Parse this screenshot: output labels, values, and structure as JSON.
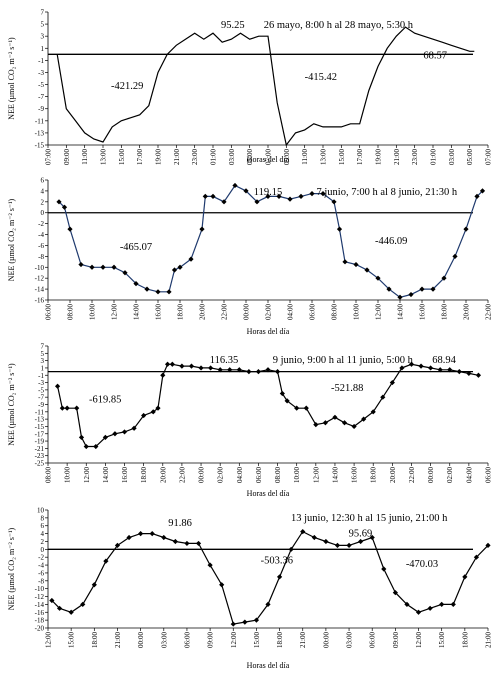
{
  "chart_data": [
    {
      "type": "line",
      "markers": false,
      "color": "#000000",
      "hline": 0,
      "y_label": "NEE (µmol CO₂ m⁻² s⁻¹)",
      "x_label": "Horas del día",
      "annotations": [
        "-421.29",
        "95.25",
        "26 mayo, 8:00 h al 28 mayo, 5:30 h",
        "68.57",
        "-415.42"
      ],
      "x": [
        1,
        2,
        3,
        4,
        5,
        6,
        7,
        8,
        9,
        10,
        11,
        12,
        13,
        14,
        15,
        16,
        17,
        18,
        19,
        20,
        21,
        22,
        23,
        24,
        25,
        26,
        27,
        28,
        29,
        30,
        31,
        32,
        33,
        34,
        35,
        36,
        37,
        38,
        39,
        40,
        41,
        42,
        43,
        44,
        45,
        46,
        46.5
      ],
      "values": [
        0,
        -9,
        -11,
        -13,
        -14,
        -14.5,
        -12,
        -11,
        -10.5,
        -10,
        -8.5,
        -3,
        0,
        1.5,
        2.5,
        3.5,
        2.5,
        3.5,
        2,
        2.5,
        3.5,
        2.5,
        3,
        3,
        -8,
        -15,
        -13,
        -12.5,
        -11.5,
        -12,
        -12,
        -12,
        -11.5,
        -11.5,
        -6,
        -2,
        1,
        3,
        4.5,
        3.5,
        3,
        2.5,
        2,
        1.5,
        1,
        0.5,
        0.5
      ],
      "xlim": [
        0,
        48
      ],
      "xticks": [
        {
          "value": 0,
          "label": "07:00"
        },
        {
          "value": 2,
          "label": "09:00"
        },
        {
          "value": 4,
          "label": "11:00"
        },
        {
          "value": 6,
          "label": "13:00"
        },
        {
          "value": 8,
          "label": "15:00"
        },
        {
          "value": 10,
          "label": "17:00"
        },
        {
          "value": 12,
          "label": "19:00"
        },
        {
          "value": 14,
          "label": "21:00"
        },
        {
          "value": 16,
          "label": "23:00"
        },
        {
          "value": 18,
          "label": "01:00"
        },
        {
          "value": 20,
          "label": "03:00"
        },
        {
          "value": 22,
          "label": "05:00"
        },
        {
          "value": 24,
          "label": "07:00"
        },
        {
          "value": 26,
          "label": "09:00"
        },
        {
          "value": 28,
          "label": "11:00"
        },
        {
          "value": 30,
          "label": "13:00"
        },
        {
          "value": 32,
          "label": "15:00"
        },
        {
          "value": 34,
          "label": "17:00"
        },
        {
          "value": 36,
          "label": "19:00"
        },
        {
          "value": 38,
          "label": "21:00"
        },
        {
          "value": 40,
          "label": "23:00"
        },
        {
          "value": 42,
          "label": "01:00"
        },
        {
          "value": 44,
          "label": "03:00"
        },
        {
          "value": 46,
          "label": "05:00"
        },
        {
          "value": 48,
          "label": "07:00"
        }
      ],
      "ylim": [
        -15,
        7
      ],
      "yticks": [
        7,
        5,
        3,
        1,
        -1,
        -3,
        -5,
        -7,
        -9,
        -11,
        -13,
        -15
      ]
    },
    {
      "type": "line",
      "markers": true,
      "color": "#1f3a6e",
      "hline": 0,
      "y_label": "NEE (µmol CO₂ m⁻² s⁻¹)",
      "x_label": "Horas del día",
      "annotations": [
        "-465.07",
        "119.15",
        "7 junio, 7:00 h al 8 junio, 21:30 h",
        "-446.09"
      ],
      "x": [
        1,
        1.5,
        2,
        3,
        4,
        5,
        6,
        7,
        8,
        9,
        10,
        11,
        11.5,
        12,
        13,
        14,
        14.3,
        15,
        16,
        17,
        18,
        19,
        20,
        21,
        22,
        23,
        24,
        25,
        26,
        26.5,
        27,
        28,
        29,
        30,
        31,
        32,
        33,
        34,
        35,
        36,
        37,
        38,
        39,
        39.5
      ],
      "values": [
        2,
        1,
        -3,
        -9.5,
        -10,
        -10,
        -10,
        -11,
        -13,
        -14,
        -14.5,
        -14.5,
        -10.5,
        -10,
        -8.5,
        -3,
        3,
        3,
        2,
        5,
        4,
        2,
        3,
        3,
        2.5,
        3,
        3.5,
        3.5,
        2,
        -3,
        -9,
        -9.5,
        -10.5,
        -12,
        -14,
        -15.5,
        -15,
        -14,
        -14,
        -12,
        -8,
        -3,
        3,
        4
      ],
      "xlim": [
        0,
        40
      ],
      "xticks": [
        {
          "value": 0,
          "label": "06:00"
        },
        {
          "value": 2,
          "label": "08:00"
        },
        {
          "value": 4,
          "label": "10:00"
        },
        {
          "value": 6,
          "label": "12:00"
        },
        {
          "value": 8,
          "label": "14:00"
        },
        {
          "value": 10,
          "label": "16:00"
        },
        {
          "value": 12,
          "label": "18:00"
        },
        {
          "value": 14,
          "label": "20:00"
        },
        {
          "value": 16,
          "label": "22:00"
        },
        {
          "value": 18,
          "label": "00:00"
        },
        {
          "value": 20,
          "label": "02:00"
        },
        {
          "value": 22,
          "label": "04:00"
        },
        {
          "value": 24,
          "label": "06:00"
        },
        {
          "value": 26,
          "label": "08:00"
        },
        {
          "value": 28,
          "label": "10:00"
        },
        {
          "value": 30,
          "label": "12:00"
        },
        {
          "value": 32,
          "label": "14:00"
        },
        {
          "value": 34,
          "label": "16:00"
        },
        {
          "value": 36,
          "label": "18:00"
        },
        {
          "value": 38,
          "label": "20:00"
        },
        {
          "value": 40,
          "label": "22:00"
        }
      ],
      "ylim": [
        -16,
        6
      ],
      "yticks": [
        6,
        4,
        2,
        0,
        -2,
        -4,
        -6,
        -8,
        -10,
        -12,
        -14,
        -16
      ]
    },
    {
      "type": "line",
      "markers": true,
      "color": "#000000",
      "hline": 0,
      "y_label": "NEE (µmol CO₂ m⁻² s⁻¹)",
      "x_label": "Horas del día",
      "annotations": [
        "-619.85",
        "116.35",
        "9 junio, 9:00 h al 11 junio, 5:00 h",
        "-521.88",
        "68.94"
      ],
      "x": [
        1,
        1.5,
        2,
        3,
        3.5,
        4,
        5,
        6,
        7,
        8,
        9,
        10,
        11,
        11.5,
        12,
        12.5,
        13,
        14,
        15,
        16,
        17,
        18,
        19,
        20,
        21,
        22,
        23,
        24,
        24.5,
        25,
        26,
        27,
        28,
        29,
        30,
        31,
        32,
        33,
        34,
        35,
        36,
        37,
        38,
        39,
        40,
        41,
        42,
        43,
        44,
        45
      ],
      "values": [
        -4,
        -10,
        -10,
        -10,
        -18,
        -20.5,
        -20.5,
        -18,
        -17,
        -16.5,
        -15.5,
        -12,
        -11,
        -10,
        -1,
        2,
        2,
        1.5,
        1.5,
        1,
        1,
        0.5,
        0.5,
        0.5,
        0,
        0,
        0.5,
        0,
        -6,
        -8,
        -10,
        -10,
        -14.5,
        -14,
        -12.5,
        -14,
        -15,
        -13,
        -11,
        -7,
        -3,
        1,
        2,
        1.5,
        1,
        0.5,
        0.5,
        0,
        -0.5,
        -1
      ],
      "xlim": [
        0,
        46
      ],
      "xticks": [
        {
          "value": 0,
          "label": "08:00"
        },
        {
          "value": 2,
          "label": "10:00"
        },
        {
          "value": 4,
          "label": "12:00"
        },
        {
          "value": 6,
          "label": "14:00"
        },
        {
          "value": 8,
          "label": "16:00"
        },
        {
          "value": 10,
          "label": "18:00"
        },
        {
          "value": 12,
          "label": "20:00"
        },
        {
          "value": 14,
          "label": "22:00"
        },
        {
          "value": 16,
          "label": "00:00"
        },
        {
          "value": 18,
          "label": "02:00"
        },
        {
          "value": 20,
          "label": "04:00"
        },
        {
          "value": 22,
          "label": "06:00"
        },
        {
          "value": 24,
          "label": "08:00"
        },
        {
          "value": 26,
          "label": "10:00"
        },
        {
          "value": 28,
          "label": "12:00"
        },
        {
          "value": 30,
          "label": "14:00"
        },
        {
          "value": 32,
          "label": "16:00"
        },
        {
          "value": 34,
          "label": "18:00"
        },
        {
          "value": 36,
          "label": "20:00"
        },
        {
          "value": 38,
          "label": "22:00"
        },
        {
          "value": 40,
          "label": "00:00"
        },
        {
          "value": 42,
          "label": "02:00"
        },
        {
          "value": 44,
          "label": "04:00"
        },
        {
          "value": 46,
          "label": "06:00"
        }
      ],
      "ylim": [
        -25,
        7
      ],
      "yticks": [
        7,
        5,
        3,
        1,
        -1,
        -3,
        -5,
        -7,
        -9,
        -11,
        -13,
        -15,
        -17,
        -19,
        -21,
        -23,
        -25
      ]
    },
    {
      "type": "line",
      "markers": true,
      "color": "#000000",
      "hline": 0,
      "y_label": "NEE (µmol CO₂ m⁻² s⁻¹)",
      "x_label": "Horas del día",
      "annotations": [
        "91.86",
        "-503.36",
        "13 junio, 12:30 h al 15 junio, 21:00 h",
        "95.69",
        "-470.03"
      ],
      "x": [
        0.5,
        1.5,
        3,
        4.5,
        6,
        7.5,
        9,
        10.5,
        12,
        13.5,
        15,
        16.5,
        18,
        19.5,
        21,
        22.5,
        24,
        25.5,
        27,
        28.5,
        30,
        31.5,
        33,
        34.5,
        36,
        37.5,
        39,
        40.5,
        42,
        43.5,
        45,
        46.5,
        48,
        49.5,
        51,
        52.5,
        54,
        55.5,
        57
      ],
      "values": [
        -13,
        -15,
        -16,
        -14,
        -9,
        -3,
        1,
        3,
        4,
        4,
        3,
        2,
        1.5,
        1.5,
        -4,
        -9,
        -19,
        -18.5,
        -18,
        -14,
        -7,
        0,
        4.5,
        3,
        2,
        1,
        1,
        2,
        3,
        -5,
        -11,
        -14,
        -16,
        -15,
        -14,
        -14,
        -7,
        -2,
        1
      ],
      "xlim": [
        0,
        57
      ],
      "xticks": [
        {
          "value": 0,
          "label": "12:00"
        },
        {
          "value": 3,
          "label": "15:00"
        },
        {
          "value": 6,
          "label": "18:00"
        },
        {
          "value": 9,
          "label": "21:00"
        },
        {
          "value": 12,
          "label": "00:00"
        },
        {
          "value": 15,
          "label": "03:00"
        },
        {
          "value": 18,
          "label": "06:00"
        },
        {
          "value": 21,
          "label": "09:00"
        },
        {
          "value": 24,
          "label": "12:00"
        },
        {
          "value": 27,
          "label": "15:00"
        },
        {
          "value": 30,
          "label": "18:00"
        },
        {
          "value": 33,
          "label": "21:00"
        },
        {
          "value": 36,
          "label": "00:00"
        },
        {
          "value": 39,
          "label": "03:00"
        },
        {
          "value": 42,
          "label": "06:00"
        },
        {
          "value": 45,
          "label": "09:00"
        },
        {
          "value": 48,
          "label": "12:00"
        },
        {
          "value": 51,
          "label": "15:00"
        },
        {
          "value": 54,
          "label": "18:00"
        },
        {
          "value": 57,
          "label": "21:00"
        }
      ],
      "ylim": [
        -20,
        10
      ],
      "yticks": [
        10,
        8,
        6,
        4,
        2,
        0,
        -2,
        -4,
        -6,
        -8,
        -10,
        -12,
        -14,
        -16,
        -18,
        -20
      ]
    }
  ]
}
